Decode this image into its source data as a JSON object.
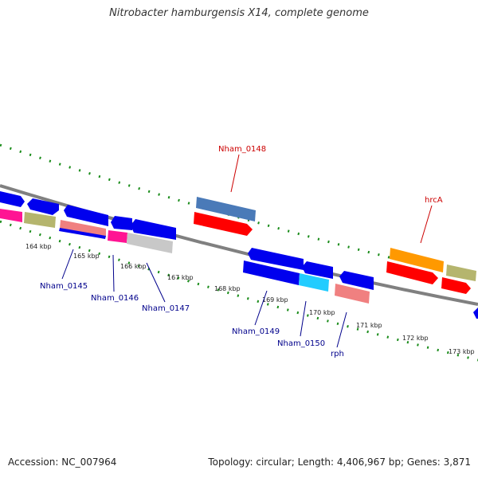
{
  "title": "Nitrobacter hamburgensis X14, complete genome",
  "footer": {
    "accession": "Accession: NC_007964",
    "summary": "Topology: circular; Length: 4,406,967 bp; Genes: 3,871"
  },
  "kbp_labels": [
    "164 kbp",
    "165 kbp",
    "166 kbp",
    "167 kbp",
    "168 kbp",
    "169 kbp",
    "170 kbp",
    "171 kbp",
    "172 kbp",
    "173 kbp"
  ],
  "gene_labels": {
    "nham_0148": "Nham_0148",
    "hrca": "hrcA",
    "nham_0145": "Nham_0145",
    "nham_0146": "Nham_0146",
    "nham_0147": "Nham_0147",
    "nham_0149": "Nham_0149",
    "nham_0150": "Nham_0150",
    "rph": "rph"
  },
  "colors": {
    "backbone": "#808080",
    "tick_green": "#1a8c1a",
    "label_red": "#cc0000",
    "label_blue": "#00008b",
    "gene_blue": "#0000ee",
    "gene_red": "#ff0000",
    "gene_magenta": "#ff1493",
    "gene_olive": "#b5b56e",
    "gene_steel": "#4a7ab8",
    "gene_orange": "#ff9900",
    "gene_cyan": "#22ccff",
    "gene_salmon": "#f08080",
    "gene_grey": "#c8c8c8"
  }
}
